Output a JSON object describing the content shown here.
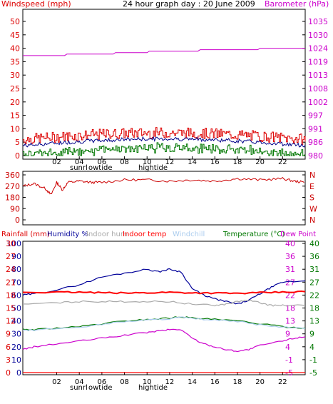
{
  "chart_data": [
    {
      "type": "line",
      "title": "24 hour graph day : 20 June 2009",
      "left_axis_label": "Windspeed (mph)",
      "right_axis_label": "Barometer (hPa)",
      "left_ticks": [
        "0",
        "5",
        "10",
        "15",
        "20",
        "25",
        "30",
        "35",
        "40",
        "45",
        "50"
      ],
      "left_range": [
        0,
        50
      ],
      "right_ticks": [
        "980",
        "986",
        "991",
        "997",
        "1002",
        "1008",
        "1013",
        "1019",
        "1024",
        "1030",
        "1035"
      ],
      "right_range": [
        980,
        1035
      ],
      "x_range": [
        -1,
        24
      ],
      "x_ticks": [
        "02",
        "04",
        "06",
        "08",
        "10",
        "12",
        "14",
        "16",
        "18",
        "20",
        "22"
      ],
      "markers": [
        "sunrl",
        "owtide",
        "hightide"
      ],
      "colors": {
        "windspeed": "#dd0000",
        "windavg": "#000088",
        "gust_low": "#007700",
        "barometer": "#cc00cc"
      },
      "series": [
        {
          "id": "barometer",
          "axis": "right",
          "x": [
            -1,
            2.7,
            2.9,
            7.0,
            7.2,
            10.0,
            10.2,
            14.5,
            14.7,
            19.8,
            20.0,
            24
          ],
          "y": [
            1021,
            1021,
            1021.6,
            1021.6,
            1022.2,
            1022.2,
            1022.8,
            1022.8,
            1023.4,
            1023.4,
            1024,
            1024
          ]
        }
      ]
    },
    {
      "type": "line",
      "left_ticks": [
        "0",
        "90",
        "180",
        "270",
        "360"
      ],
      "left_range": [
        0,
        360
      ],
      "right_ticks": [
        "N",
        "W",
        "S",
        "E",
        "N"
      ],
      "x_range": [
        -1,
        24
      ],
      "series": [
        {
          "id": "wind-direction",
          "color": "#cc0000",
          "x": [
            -1,
            0,
            1,
            1.5,
            2,
            2.5,
            3,
            4,
            5,
            6,
            8,
            10,
            12,
            14,
            16,
            18,
            20,
            22,
            23,
            24
          ],
          "y": [
            270,
            290,
            250,
            200,
            300,
            240,
            300,
            310,
            300,
            300,
            320,
            320,
            310,
            320,
            310,
            330,
            320,
            330,
            310,
            300
          ]
        }
      ]
    },
    {
      "type": "line",
      "axes": {
        "rainfall": {
          "label": "Rainfall (mm)",
          "ticks": [
            "0",
            "3",
            "6",
            "9",
            "12",
            "15",
            "18",
            "21",
            "24",
            "27",
            "30"
          ]
        },
        "humidity": {
          "label": "Humidity %",
          "ticks": [
            "0",
            "10",
            "20",
            "30",
            "40",
            "50",
            "60",
            "70",
            "80",
            "90",
            "100"
          ]
        },
        "temp_left": {
          "ticks": [
            "-5",
            "-1",
            "4",
            "9",
            "13",
            "18",
            "22",
            "27",
            "31",
            "36",
            "40"
          ]
        },
        "temp_right": {
          "ticks": [
            "-5",
            "-1",
            "4",
            "9",
            "13",
            "18",
            "22",
            "27",
            "31",
            "36",
            "40"
          ]
        }
      },
      "legend": [
        "Rainfall (mm)",
        "Humidity %",
        "Indoor hum",
        "Indoor temp",
        "Windchill",
        "Temperature (°C)",
        "Dew Point"
      ],
      "x_range": [
        -1,
        24
      ],
      "x_ticks": [
        "02",
        "04",
        "06",
        "08",
        "10",
        "12",
        "14",
        "16",
        "18",
        "20",
        "22"
      ],
      "markers": [
        "sunrl",
        "owtide",
        "hightide"
      ],
      "series": [
        {
          "id": "humidity",
          "color": "#000099",
          "axis": "humidity",
          "x": [
            -1,
            0,
            2,
            4,
            6,
            8,
            10,
            11,
            12,
            13,
            14,
            15,
            16,
            17,
            18,
            19,
            20,
            21,
            22,
            24
          ],
          "y": [
            60,
            61,
            64,
            68,
            74,
            77,
            80,
            78,
            80,
            78,
            65,
            60,
            57,
            55,
            53,
            56,
            61,
            66,
            70,
            71
          ]
        },
        {
          "id": "indoor-temp",
          "color": "#ff0000",
          "axis": "temp",
          "x": [
            -1,
            2,
            4,
            6,
            8,
            10,
            12,
            14,
            16,
            18,
            20,
            22,
            24
          ],
          "y": [
            23,
            23,
            23,
            22.8,
            22.7,
            22.8,
            23,
            22.8,
            22.7,
            22.6,
            22.8,
            23,
            23.2
          ]
        },
        {
          "id": "indoor-hum",
          "color": "#aaaaaa",
          "axis": "humidity",
          "x": [
            -1,
            2,
            4,
            6,
            8,
            10,
            12,
            14,
            16,
            17,
            18,
            19,
            20,
            21,
            22,
            24
          ],
          "y": [
            53,
            54,
            55,
            55,
            55,
            55,
            55,
            53,
            52,
            53,
            55,
            56,
            54,
            52,
            52,
            52
          ]
        },
        {
          "id": "temperature",
          "color": "#007700",
          "axis": "temp",
          "x": [
            -1,
            0,
            2,
            4,
            6,
            8,
            10,
            12,
            13,
            14,
            16,
            18,
            20,
            22,
            24
          ],
          "y": [
            10,
            10,
            10.5,
            11,
            12,
            13,
            13.5,
            14,
            14.5,
            14,
            13.5,
            13,
            12,
            11,
            10.5
          ]
        },
        {
          "id": "windchill",
          "color": "#aaccee",
          "axis": "temp",
          "x": [
            -1,
            0,
            2,
            4,
            6,
            8,
            10,
            12,
            13,
            14,
            16,
            18,
            20,
            22,
            24
          ],
          "y": [
            9.8,
            9.8,
            10.3,
            10.8,
            11.8,
            12.8,
            13.3,
            13.8,
            14.3,
            13.8,
            13.3,
            12.8,
            11.6,
            10.8,
            10.3
          ]
        },
        {
          "id": "dew-point",
          "color": "#cc00cc",
          "axis": "temp",
          "x": [
            -1,
            0,
            2,
            4,
            6,
            8,
            10,
            11,
            12,
            13,
            14,
            15,
            16,
            17,
            18,
            19,
            20,
            22,
            23,
            24
          ],
          "y": [
            3,
            4,
            5,
            6,
            7,
            8,
            9,
            9.5,
            10,
            10,
            7,
            5,
            4,
            3,
            2.5,
            3,
            4.5,
            6,
            7,
            7.5
          ]
        },
        {
          "id": "rainfall",
          "color": "#ff0000",
          "axis": "rainfall",
          "x": [
            -1,
            24
          ],
          "y": [
            0,
            0
          ]
        }
      ]
    }
  ]
}
